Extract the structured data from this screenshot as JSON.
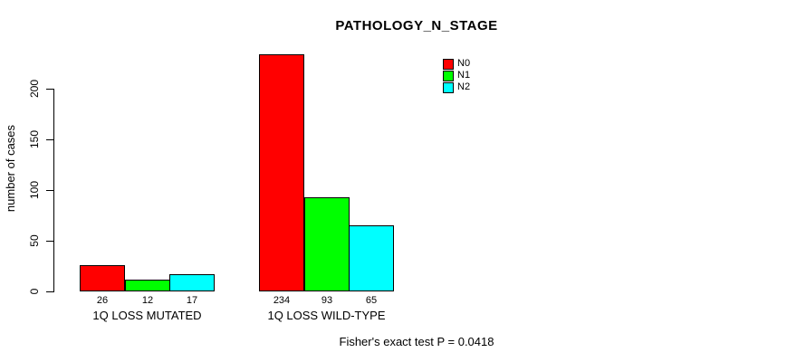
{
  "chart_data": {
    "type": "bar",
    "title": "PATHOLOGY_N_STAGE",
    "xlabel": "",
    "ylabel": "number of cases",
    "categories": [
      "1Q LOSS MUTATED",
      "1Q LOSS WILD-TYPE"
    ],
    "series": [
      {
        "name": "N0",
        "color": "#ff0000",
        "values": [
          26,
          234
        ]
      },
      {
        "name": "N1",
        "color": "#00ff00",
        "values": [
          12,
          93
        ]
      },
      {
        "name": "N2",
        "color": "#00ffff",
        "values": [
          17,
          65
        ]
      }
    ],
    "yticks": [
      0,
      50,
      100,
      150,
      200
    ],
    "ylim": [
      0,
      240
    ],
    "grid": false,
    "bar_value_labels_shown": true,
    "legend": {
      "position": "top-right",
      "entries": [
        "N0",
        "N1",
        "N2"
      ]
    },
    "footnote": "Fisher's exact test P = 0.0418"
  }
}
